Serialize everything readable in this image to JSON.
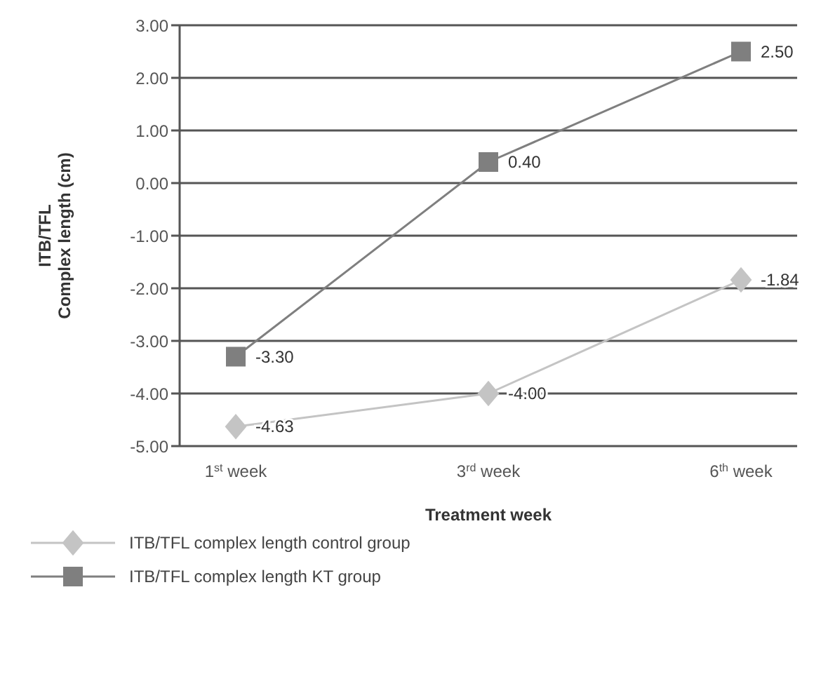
{
  "chart_data": {
    "type": "line",
    "xlabel": "Treatment week",
    "ylabel": "ITB/TFL\nComplex length (cm)",
    "categories": [
      "1$^{st}$ week",
      "3$^{rd}$ week",
      "6$^{th}$ week"
    ],
    "series": [
      {
        "name": "ITB/TFL complex length control group",
        "color": "#c4c4c4",
        "marker": "diamond",
        "values": [
          -4.63,
          -4.0,
          -1.84
        ],
        "value_labels": [
          "-4.63",
          "-4.00",
          "-1.84"
        ]
      },
      {
        "name": "ITB/TFL complex length KT group",
        "color": "#7f7f7f",
        "marker": "square",
        "values": [
          -3.3,
          0.4,
          2.5
        ],
        "value_labels": [
          "-3.30",
          "0.40",
          "2.50"
        ]
      }
    ],
    "ylim": [
      -5,
      3
    ],
    "yticks": [
      {
        "value": -5,
        "label": "-5.00"
      },
      {
        "value": -4,
        "label": "-4.00"
      },
      {
        "value": -3,
        "label": "-3.00"
      },
      {
        "value": -2,
        "label": "-2.00"
      },
      {
        "value": -1,
        "label": "-1.00"
      },
      {
        "value": 0,
        "label": "0.00"
      },
      {
        "value": 1,
        "label": "1.00"
      },
      {
        "value": 2,
        "label": "2.00"
      },
      {
        "value": 3,
        "label": "3.00"
      }
    ],
    "grid": "y",
    "legend": "bottom left",
    "line_style": "solid"
  }
}
